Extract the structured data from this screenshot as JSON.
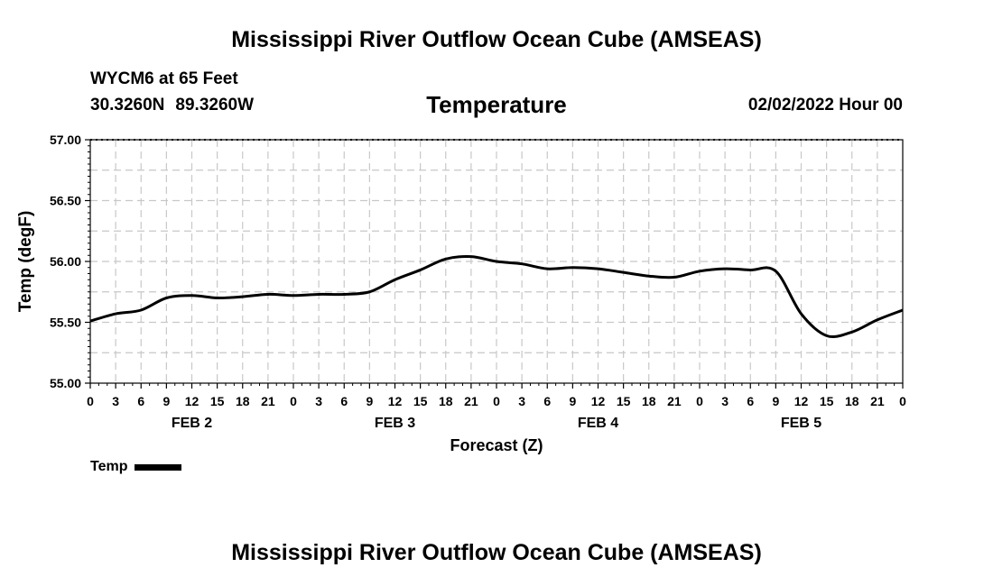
{
  "page": {
    "title": "Mississippi River Outflow Ocean Cube (AMSEAS)",
    "station": "WYCM6 at 65 Feet",
    "lat": "30.3260N",
    "lon": "89.3260W",
    "subtitle": "Temperature",
    "datetime": "02/02/2022 Hour 00",
    "footer_title": "Mississippi River Outflow Ocean Cube (AMSEAS)"
  },
  "legend": {
    "label": "Temp"
  },
  "chart_data": {
    "type": "line",
    "title": "Temperature",
    "xlabel": "Forecast (Z)",
    "ylabel": "Temp (degF)",
    "ylim": [
      55.0,
      57.0
    ],
    "yticks": [
      "55.00",
      "55.50",
      "56.00",
      "56.50",
      "57.00"
    ],
    "xlim": [
      0,
      96
    ],
    "xtick_labels": [
      "0",
      "3",
      "6",
      "9",
      "12",
      "15",
      "18",
      "21",
      "0",
      "3",
      "6",
      "9",
      "12",
      "15",
      "18",
      "21",
      "0",
      "3",
      "6",
      "9",
      "12",
      "15",
      "18",
      "21",
      "0",
      "3",
      "6",
      "9",
      "12",
      "15",
      "18",
      "21",
      "0"
    ],
    "day_labels": [
      "FEB 2",
      "FEB 3",
      "FEB 4",
      "FEB 5"
    ],
    "grid": true,
    "series": [
      {
        "name": "Temp",
        "x": [
          0,
          3,
          6,
          9,
          12,
          15,
          18,
          21,
          24,
          27,
          30,
          33,
          36,
          39,
          42,
          45,
          48,
          51,
          54,
          57,
          60,
          63,
          66,
          69,
          72,
          75,
          78,
          81,
          84,
          87,
          90,
          93,
          96
        ],
        "values": [
          55.51,
          55.57,
          55.6,
          55.7,
          55.72,
          55.7,
          55.71,
          55.73,
          55.72,
          55.73,
          55.73,
          55.75,
          55.85,
          55.93,
          56.02,
          56.04,
          56.0,
          55.98,
          55.94,
          55.95,
          55.94,
          55.91,
          55.88,
          55.87,
          55.92,
          55.94,
          55.93,
          55.92,
          55.57,
          55.39,
          55.42,
          55.52,
          55.6
        ]
      }
    ]
  }
}
